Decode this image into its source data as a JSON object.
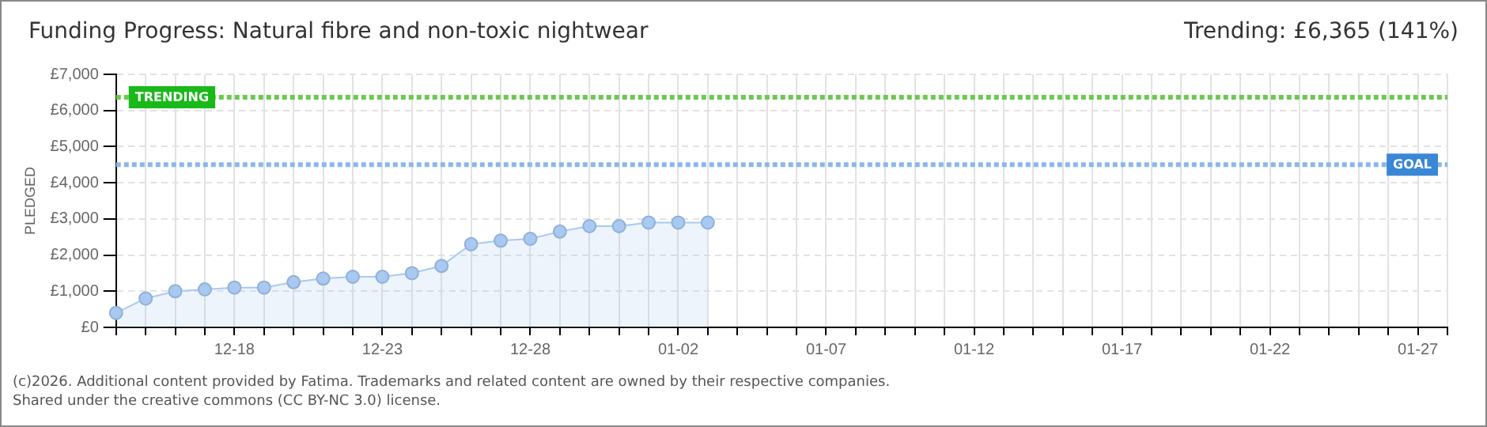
{
  "chart_data": {
    "type": "area",
    "title": "Funding Progress: Natural fibre and non-toxic nightwear",
    "subtitle": "Trending:  £6,365 (141%)",
    "ylabel": "PLEDGED",
    "categories": [
      null,
      null,
      null,
      null,
      "12-18",
      null,
      null,
      null,
      null,
      "12-23",
      null,
      null,
      null,
      null,
      "12-28",
      null,
      null,
      null,
      null,
      "01-02",
      null,
      null,
      null,
      null,
      "01-07",
      null,
      null,
      null,
      null,
      "01-12",
      null,
      null,
      null,
      null,
      "01-17",
      null,
      null,
      null,
      null,
      "01-22",
      null,
      null,
      null,
      null,
      "01-27",
      null
    ],
    "series": [
      {
        "color": "#a9c9f0",
        "values": [
          400,
          800,
          1000,
          1050,
          1100,
          1100,
          1250,
          1350,
          1400,
          1400,
          1500,
          1700,
          2300,
          2400,
          2450,
          2650,
          2800,
          2800,
          2900,
          2900,
          2900,
          null,
          null,
          null,
          null,
          null,
          null,
          null,
          null,
          null,
          null,
          null,
          null,
          null,
          null,
          null,
          null,
          null,
          null,
          null,
          null,
          null,
          null,
          null,
          null,
          null
        ]
      }
    ],
    "ylim": [
      0,
      7000
    ],
    "yticks": [
      {
        "value": 0,
        "label": "£0"
      },
      {
        "value": 1000,
        "label": "£1,000"
      },
      {
        "value": 2000,
        "label": "£2,000"
      },
      {
        "value": 3000,
        "label": "£3,000"
      },
      {
        "value": 4000,
        "label": "£4,000"
      },
      {
        "value": 5000,
        "label": "£5,000"
      },
      {
        "value": 6000,
        "label": "£6,000"
      },
      {
        "value": 7000,
        "label": "£7,000"
      }
    ],
    "ref_lines": [
      {
        "axis": "y",
        "value": 6365,
        "label": "TRENDING",
        "color": "#6cc94f",
        "line_style": "dotted"
      },
      {
        "axis": "y",
        "value": 4500,
        "label": "GOAL",
        "color": "#8ab8ea",
        "line_style": "dotted"
      }
    ],
    "grid": true,
    "marker": "circle",
    "line_style": "solid",
    "legend": false,
    "annotations": [
      "(c)2026. Additional content provided by Fatima. Trademarks and related content are owned by their respective companies.",
      "Shared under the creative commons (CC BY-NC 3.0) license."
    ]
  }
}
